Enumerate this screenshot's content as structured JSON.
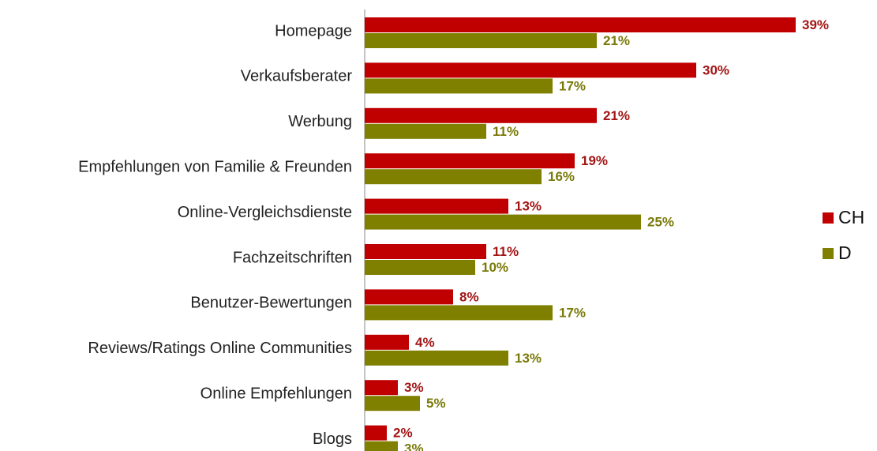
{
  "chart_data": {
    "type": "bar",
    "orientation": "horizontal",
    "categories": [
      "Homepage",
      "Verkaufsberater",
      "Werbung",
      "Empfehlungen von Familie & Freunden",
      "Online-Vergleichsdienste",
      "Fachzeitschriften",
      "Benutzer-Bewertungen",
      "Reviews/Ratings Online Communities",
      "Online Empfehlungen",
      "Blogs"
    ],
    "series": [
      {
        "name": "CH",
        "color": "#c00000",
        "label_color": "#a31515",
        "values": [
          39,
          30,
          21,
          19,
          13,
          11,
          8,
          4,
          3,
          2
        ],
        "value_labels": [
          "39%",
          "30%",
          "21%",
          "19%",
          "13%",
          "11%",
          "8%",
          "4%",
          "3%",
          "2%"
        ]
      },
      {
        "name": "D",
        "color": "#808000",
        "label_color": "#7a7a0a",
        "values": [
          21,
          17,
          11,
          16,
          25,
          10,
          17,
          13,
          5,
          3
        ],
        "value_labels": [
          "21%",
          "17%",
          "11%",
          "16%",
          "25%",
          "10%",
          "17%",
          "13%",
          "5%",
          "3%"
        ]
      }
    ],
    "legend": "right"
  }
}
